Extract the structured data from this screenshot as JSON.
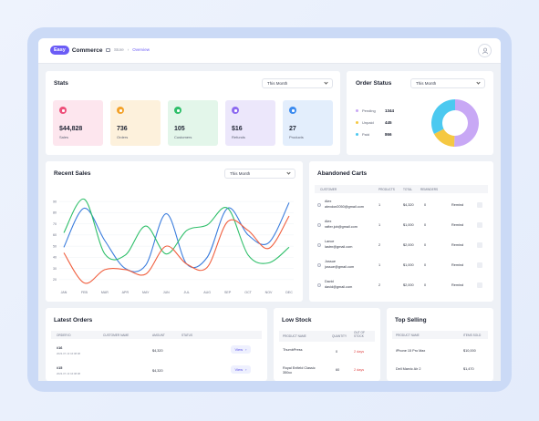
{
  "header": {
    "logo_badge": "Easy",
    "logo_text": "Commerce",
    "crumb_root": "Store",
    "crumb_active": "Overview"
  },
  "stats": {
    "title": "Stats",
    "period": "This Month",
    "tiles": [
      {
        "value": "$44,828",
        "label": "Sales",
        "icon": "dollar-icon",
        "bg": "#fde6ee",
        "accent": "#ee4f7a"
      },
      {
        "value": "736",
        "label": "Orders",
        "icon": "cart-icon",
        "bg": "#fdf1dc",
        "accent": "#f3a22a"
      },
      {
        "value": "105",
        "label": "Customers",
        "icon": "users-icon",
        "bg": "#e3f6ea",
        "accent": "#2fbf6a"
      },
      {
        "value": "$16",
        "label": "Refunds",
        "icon": "refund-icon",
        "bg": "#ece7fb",
        "accent": "#8d6af0"
      },
      {
        "value": "27",
        "label": "Products",
        "icon": "box-icon",
        "bg": "#e3eefc",
        "accent": "#3b8bef"
      }
    ]
  },
  "order_status": {
    "title": "Order Status",
    "period": "This Month",
    "items": [
      {
        "label": "Pending",
        "value": "1344",
        "color": "#c8a8f5"
      },
      {
        "label": "Unpaid",
        "value": "445",
        "color": "#f5c842"
      },
      {
        "label": "Paid",
        "value": "866",
        "color": "#4cc9f0"
      }
    ]
  },
  "recent_sales": {
    "title": "Recent Sales",
    "period": "This Month"
  },
  "chart_data": {
    "type": "line",
    "categories": [
      "JAN",
      "FEB",
      "MAR",
      "APR",
      "MAY",
      "JUN",
      "JUL",
      "AUG",
      "SEP",
      "OCT",
      "NOV",
      "DEC"
    ],
    "yticks": [
      "90",
      "80",
      "70",
      "60",
      "50",
      "40",
      "30",
      "20"
    ],
    "ylim": [
      15,
      95
    ],
    "series": [
      {
        "color": "#3b7ddd",
        "values": [
          49,
          84,
          55,
          30,
          33,
          79,
          34,
          40,
          84,
          60,
          53,
          89
        ]
      },
      {
        "color": "#2fbf6a",
        "values": [
          62,
          92,
          43,
          42,
          68,
          43,
          64,
          69,
          84,
          42,
          35,
          49
        ]
      },
      {
        "color": "#f06040",
        "values": [
          44,
          17,
          29,
          29,
          25,
          50,
          34,
          31,
          72,
          64,
          48,
          77
        ]
      }
    ]
  },
  "abandoned_carts": {
    "title": "Abandoned Carts",
    "columns": [
      "CUSTOMER",
      "PRODUCTS",
      "TOTAL",
      "REMINDERS"
    ],
    "rows": [
      {
        "name": "Alex",
        "email": "alexdoe2050@gmail.com",
        "products": "1",
        "total": "$4,320",
        "reminders": "0",
        "action": "Remind"
      },
      {
        "name": "Alex",
        "email": "rafter.job@gmail.com",
        "products": "1",
        "total": "$1,000",
        "reminders": "0",
        "action": "Remind"
      },
      {
        "name": "Lance",
        "email": "lastrn@gmail.com",
        "products": "2",
        "total": "$2,000",
        "reminders": "0",
        "action": "Remind"
      },
      {
        "name": "Jossue",
        "email": "jossue@gmail.com",
        "products": "1",
        "total": "$1,000",
        "reminders": "0",
        "action": "Remind"
      },
      {
        "name": "David",
        "email": "david@gmail.com",
        "products": "2",
        "total": "$2,000",
        "reminders": "0",
        "action": "Remind"
      }
    ]
  },
  "latest_orders": {
    "title": "Latest Orders",
    "columns": [
      "ORDER ID",
      "CUSTOMER NAME",
      "AMOUNT",
      "STATUS"
    ],
    "rows": [
      {
        "id": "#16",
        "date": "2023-07-13 16:08:08",
        "amount": "$4,320",
        "action": "View"
      },
      {
        "id": "#15",
        "date": "2023-07-13 16:08:08",
        "amount": "$4,320",
        "action": "View"
      }
    ]
  },
  "low_stock": {
    "title": "Low Stock",
    "columns": [
      "PRODUCT NAME",
      "QUANTITY",
      "OUT OF STOCK"
    ],
    "rows": [
      {
        "name": "ThumbPress",
        "qty": "0",
        "out": "2 days"
      },
      {
        "name": "Royal Enfield Classic 350cc",
        "qty": "60",
        "out": "2 days"
      }
    ]
  },
  "top_selling": {
    "title": "Top Selling",
    "columns": [
      "PRODUCT NAME",
      "ITEMS SOLD"
    ],
    "rows": [
      {
        "name": "iPhone 15 Pro Max",
        "sold": "$10,000"
      },
      {
        "name": "Dell Marvic Air 2",
        "sold": "$1,470"
      }
    ]
  }
}
